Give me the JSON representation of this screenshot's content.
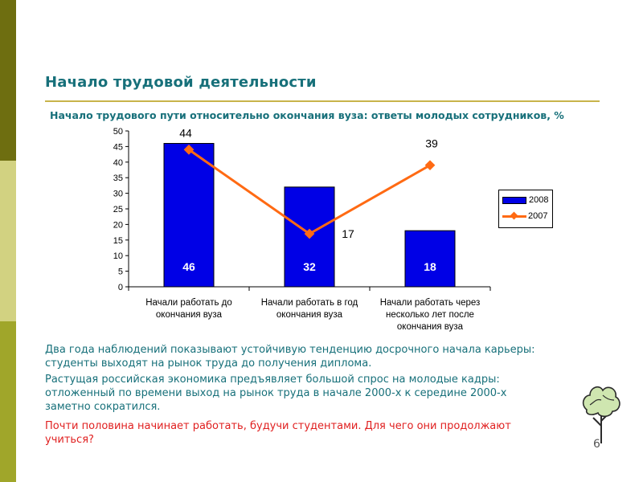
{
  "slide": {
    "title": "Начало трудовой деятельности",
    "paragraphs": [
      "Два года наблюдений показывают устойчивую тенденцию досрочного начала карьеры: студенты выходят на рынок труда до получения диплома.",
      "Растущая российская экономика предъявляет большой спрос на молодые кадры: отложенный по времени выход на рынок труда в начале 2000-х к середине 2000-х заметно сократился.",
      "Почти половина начинает работать, будучи студентами. Для чего они продолжают учиться?"
    ],
    "page_number": "6"
  },
  "colors": {
    "sidebar": [
      "#6e6e10",
      "#d2d281",
      "#a0a62a"
    ],
    "title": "#17707a",
    "bars": "#0000e6",
    "line": "#ff6a13",
    "question": "#e02020"
  },
  "chart_data": {
    "type": "bar",
    "title": "Начало трудового пути относительно окончания вуза: ответы молодых сотрудников, %",
    "categories": [
      "Начали работать до окончания вуза",
      "Начали работать в год окончания вуза",
      "Начали работать через несколько лет после окончания вуза"
    ],
    "category_lines": [
      [
        "Начали работать до",
        "окончания вуза"
      ],
      [
        "Начали работать в год",
        "окончания вуза"
      ],
      [
        "Начали работать через",
        "несколько лет после",
        "окончания вуза"
      ]
    ],
    "series": [
      {
        "name": "2008",
        "type": "bar",
        "values": [
          46,
          32,
          18
        ]
      },
      {
        "name": "2007",
        "type": "line",
        "values": [
          44,
          17,
          39
        ]
      }
    ],
    "ylim": [
      0,
      50
    ],
    "yticks": [
      0,
      5,
      10,
      15,
      20,
      25,
      30,
      35,
      40,
      45,
      50
    ],
    "grid": false,
    "legend_position": "right"
  }
}
